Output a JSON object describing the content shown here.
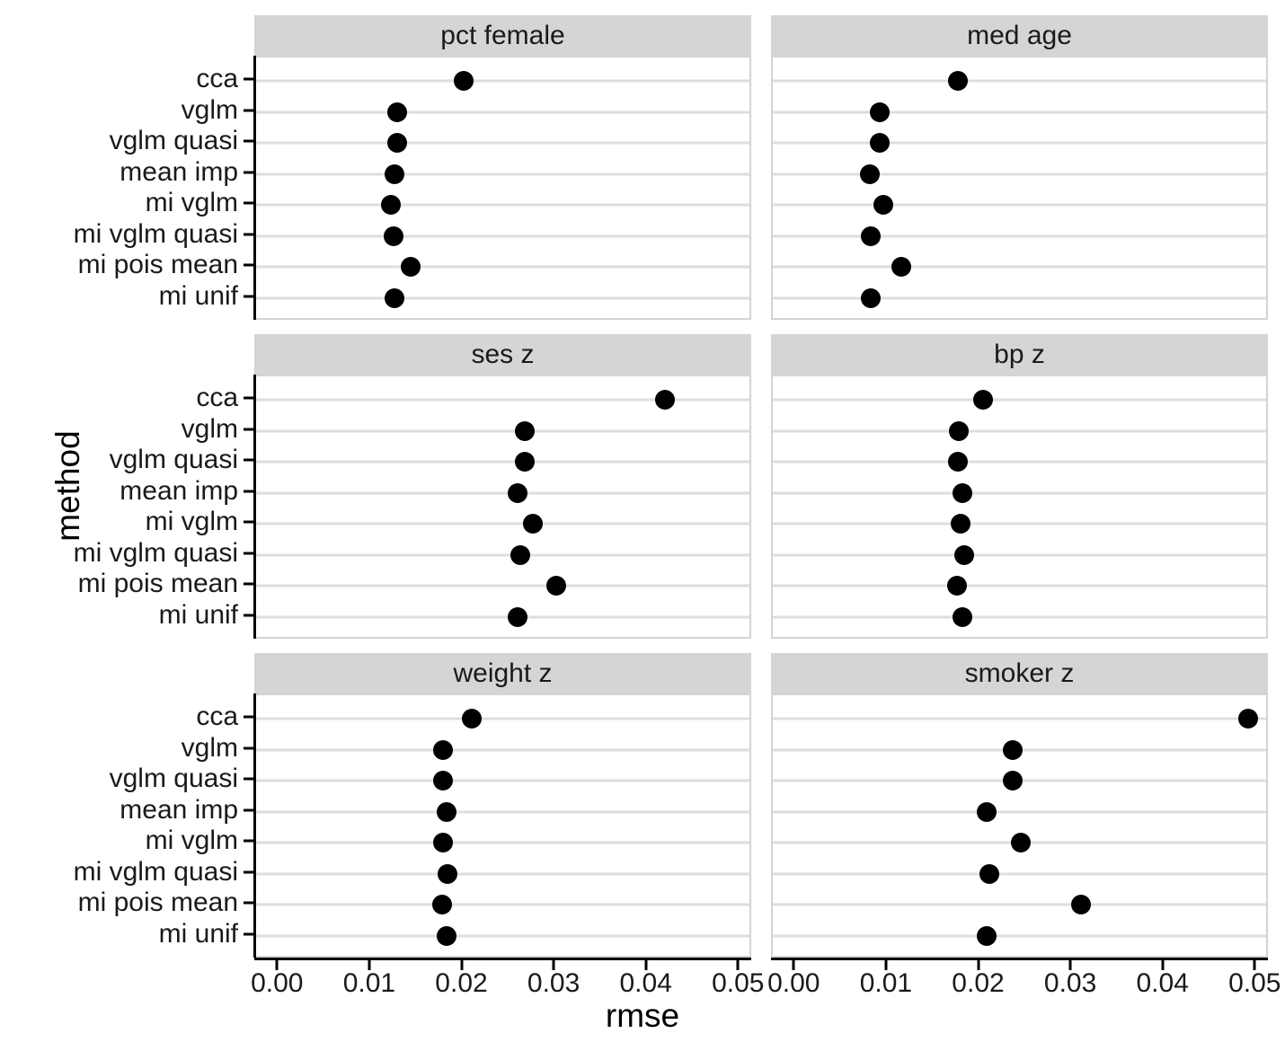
{
  "chart_data": {
    "type": "scatter",
    "title": "",
    "xlabel": "rmse",
    "ylabel": "method",
    "grid": "horizontal-major-only",
    "legend_position": "none",
    "facet_layout": {
      "rows": 3,
      "cols": 2
    },
    "xlim": [
      -0.0025,
      0.0525
    ],
    "x_tick_values": [
      0.0,
      0.01,
      0.02,
      0.03,
      0.04,
      0.05
    ],
    "x_tick_labels": [
      "0.00",
      "0.01",
      "0.02",
      "0.03",
      "0.04",
      "0.05"
    ],
    "categories": [
      "cca",
      "vglm",
      "vglm quasi",
      "mean imp",
      "mi vglm",
      "mi vglm quasi",
      "mi pois mean",
      "mi unif"
    ],
    "panels": [
      {
        "label": "pct female",
        "values": [
          0.02,
          0.0128,
          0.0128,
          0.0125,
          0.0122,
          0.0124,
          0.0143,
          0.0125
        ]
      },
      {
        "label": "med age",
        "values": [
          0.0176,
          0.0091,
          0.0091,
          0.0081,
          0.0095,
          0.0082,
          0.0115,
          0.0082
        ]
      },
      {
        "label": "ses z",
        "values": [
          0.0419,
          0.0267,
          0.0267,
          0.0259,
          0.0276,
          0.0262,
          0.0301,
          0.0259
        ]
      },
      {
        "label": "bp z",
        "values": [
          0.0203,
          0.0177,
          0.0176,
          0.0181,
          0.0179,
          0.0183,
          0.0175,
          0.0181
        ]
      },
      {
        "label": "weight z",
        "values": [
          0.0209,
          0.0178,
          0.0178,
          0.0182,
          0.0178,
          0.0183,
          0.0177,
          0.0182
        ]
      },
      {
        "label": "smoker z",
        "values": [
          0.0491,
          0.0236,
          0.0236,
          0.0207,
          0.0244,
          0.021,
          0.031,
          0.0207
        ]
      }
    ]
  }
}
